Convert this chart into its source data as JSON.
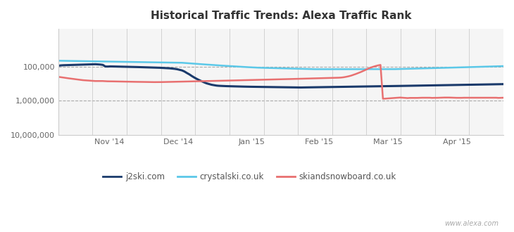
{
  "title": "Historical Traffic Trends: Alexa Traffic Rank",
  "background_color": "#ffffff",
  "plot_bg_color": "#f5f5f5",
  "watermark": "www.alexa.com",
  "x_tick_labels": [
    "Nov '14",
    "Dec '14",
    "Jan '15",
    "Feb '15",
    "Mar '15",
    "Apr '15"
  ],
  "x_tick_positions": [
    0.115,
    0.27,
    0.435,
    0.585,
    0.74,
    0.895
  ],
  "hgrid_lines": [
    100000,
    1000000
  ],
  "legend": [
    {
      "label": "j2ski.com",
      "color": "#1a3a6b"
    },
    {
      "label": "crystalski.co.uk",
      "color": "#5bc8e8"
    },
    {
      "label": "skiandsnowboard.co.uk",
      "color": "#e87070"
    }
  ],
  "series": [
    {
      "name": "j2ski.com",
      "color": "#1a3a6b",
      "linewidth": 2.2,
      "y": [
        95000,
        93000,
        92000,
        91500,
        91000,
        90500,
        90000,
        89500,
        89000,
        88500,
        88000,
        87500,
        87000,
        86500,
        86000,
        86000,
        87000,
        88000,
        90000,
        100000,
        100500,
        99500,
        100000,
        100500,
        101000,
        101000,
        101500,
        102000,
        102000,
        102500,
        103000,
        103500,
        104000,
        104500,
        105000,
        105500,
        106000,
        106500,
        107000,
        107500,
        108000,
        109000,
        110000,
        111000,
        112000,
        113000,
        115000,
        117000,
        120000,
        125000,
        130000,
        140000,
        155000,
        170000,
        190000,
        210000,
        230000,
        250000,
        270000,
        290000,
        310000,
        325000,
        340000,
        350000,
        360000,
        365000,
        368000,
        370000,
        373000,
        375000,
        377000,
        379000,
        380000,
        381000,
        383000,
        385000,
        387000,
        388000,
        389000,
        390000,
        391000,
        392000,
        393000,
        394000,
        395000,
        396000,
        397000,
        398000,
        399000,
        400000,
        401000,
        402000,
        403000,
        404000,
        405000,
        406000,
        407000,
        408000,
        408000,
        407000,
        406000,
        405000,
        404000,
        403000,
        402000,
        401000,
        400000,
        399000,
        398000,
        397000,
        396000,
        395000,
        394000,
        393000,
        392000,
        391000,
        390000,
        389000,
        388000,
        387000,
        386000,
        385000,
        384000,
        383000,
        382000,
        381000,
        380000,
        379000,
        378000,
        377000,
        376000,
        375000,
        374000,
        373000,
        372000,
        371000,
        370000,
        369000,
        368000,
        367000,
        366000,
        365000,
        364000,
        363000,
        362000,
        361000,
        360000,
        359000,
        358000,
        357000,
        356000,
        355000,
        354000,
        353000,
        352000,
        351000,
        350000,
        349000,
        348000,
        347000,
        346000,
        345000,
        344000,
        343000,
        342000,
        341000,
        340000,
        339000,
        338000,
        337000,
        336000,
        335000,
        334000,
        333000,
        332000,
        331000,
        330000,
        329000,
        328000,
        327000,
        326000
      ]
    },
    {
      "name": "crystalski.co.uk",
      "color": "#5bc8e8",
      "linewidth": 1.8,
      "y": [
        68000,
        68200,
        68400,
        68600,
        68800,
        69000,
        69200,
        69400,
        69600,
        69800,
        70000,
        70200,
        70400,
        70600,
        70800,
        71000,
        71200,
        71400,
        71600,
        71800,
        72000,
        72200,
        72400,
        72600,
        72800,
        73000,
        73200,
        73400,
        73600,
        73800,
        74000,
        74200,
        74400,
        74600,
        74800,
        75000,
        75200,
        75400,
        75600,
        75800,
        76000,
        76200,
        76400,
        76600,
        76800,
        77000,
        77200,
        77400,
        77600,
        77800,
        78000,
        79000,
        80000,
        81000,
        82000,
        83000,
        84000,
        85000,
        86000,
        87000,
        88000,
        89000,
        90000,
        91000,
        92000,
        93000,
        94000,
        95000,
        96000,
        97000,
        98000,
        99000,
        100000,
        101000,
        102000,
        103000,
        104000,
        105000,
        106000,
        107000,
        108000,
        108500,
        109000,
        109500,
        110000,
        110500,
        111000,
        111500,
        112000,
        112500,
        113000,
        113500,
        114000,
        114500,
        115000,
        115500,
        116000,
        116500,
        117000,
        117500,
        118000,
        118500,
        119000,
        119500,
        120000,
        120000,
        120000,
        120000,
        120000,
        120000,
        120000,
        120000,
        120000,
        120000,
        120000,
        120000,
        120000,
        120000,
        120000,
        120000,
        120000,
        120000,
        120000,
        120000,
        120000,
        120000,
        120000,
        120000,
        120000,
        120000,
        120000,
        120000,
        120000,
        120000,
        120000,
        120000,
        119500,
        119000,
        118500,
        118000,
        117500,
        117000,
        116500,
        116000,
        115500,
        115000,
        114500,
        114000,
        113500,
        113000,
        112500,
        112000,
        111500,
        111000,
        110500,
        110000,
        109500,
        109000,
        108500,
        108000,
        107500,
        107000,
        106500,
        106000,
        105500,
        105000,
        104500,
        104000,
        103500,
        103000,
        102500,
        102000,
        101500,
        101000,
        100500,
        100000,
        99500,
        99000,
        98500,
        98000,
        97500
      ]
    },
    {
      "name": "skiandsnowboard.co.uk",
      "color": "#e87070",
      "linewidth": 1.8,
      "y": [
        200000,
        205000,
        210000,
        215000,
        220000,
        225000,
        230000,
        235000,
        240000,
        245000,
        250000,
        253000,
        256000,
        259000,
        262000,
        265000,
        265000,
        265000,
        265000,
        268000,
        270000,
        270000,
        271000,
        272000,
        273000,
        274000,
        275000,
        275000,
        276000,
        277000,
        278000,
        279000,
        280000,
        280000,
        281000,
        282000,
        283000,
        283000,
        284000,
        285000,
        285000,
        285000,
        284000,
        283000,
        282000,
        281000,
        280000,
        279000,
        278000,
        277000,
        276000,
        275000,
        274000,
        273000,
        272000,
        271000,
        270000,
        269000,
        268000,
        267000,
        266000,
        265000,
        264000,
        263000,
        262000,
        261000,
        260000,
        259000,
        258000,
        257000,
        256000,
        255000,
        254000,
        253000,
        252000,
        251000,
        250000,
        249000,
        248000,
        247000,
        246000,
        245000,
        244000,
        243000,
        242000,
        241000,
        240000,
        239000,
        238000,
        237000,
        236000,
        235000,
        234000,
        233000,
        232000,
        231000,
        230000,
        229000,
        228000,
        227000,
        226000,
        225000,
        224000,
        223000,
        222000,
        221000,
        220000,
        219000,
        218000,
        217000,
        216000,
        215000,
        214000,
        213000,
        212000,
        210000,
        206000,
        200000,
        193000,
        185000,
        175000,
        165000,
        155000,
        145000,
        135000,
        125000,
        115000,
        108000,
        102000,
        97000,
        93000,
        90000,
        870000,
        860000,
        850000,
        840000,
        830000,
        820000,
        810000,
        800000,
        810000,
        820000,
        830000,
        820000,
        820000,
        820000,
        820000,
        815000,
        810000,
        810000,
        810000,
        810000,
        820000,
        815000,
        815000,
        810000,
        805000,
        800000,
        800000,
        800000,
        805000,
        810000,
        815000,
        815000,
        815000,
        810000,
        810000,
        810000,
        810000,
        810000,
        810000,
        810000,
        810000,
        810000,
        810000,
        810000,
        810000,
        810000,
        810000,
        820000,
        815000,
        810000
      ]
    }
  ]
}
